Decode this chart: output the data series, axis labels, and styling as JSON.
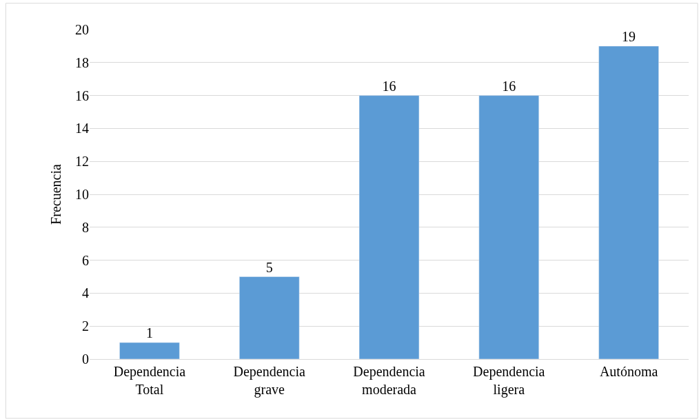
{
  "chart_data": {
    "type": "bar",
    "ylabel": "Frecuencia",
    "categories": [
      "Dependencia Total",
      "Dependencia grave",
      "Dependencia moderada",
      "Dependencia ligera",
      "Autónoma"
    ],
    "values": [
      1,
      5,
      16,
      16,
      19
    ],
    "color": "#5b9bd5",
    "ylim": [
      0,
      20
    ],
    "yticks": [
      0,
      2,
      4,
      6,
      8,
      10,
      12,
      14,
      16,
      18,
      20
    ],
    "grid": "y",
    "data_labels": true,
    "legend": false
  }
}
